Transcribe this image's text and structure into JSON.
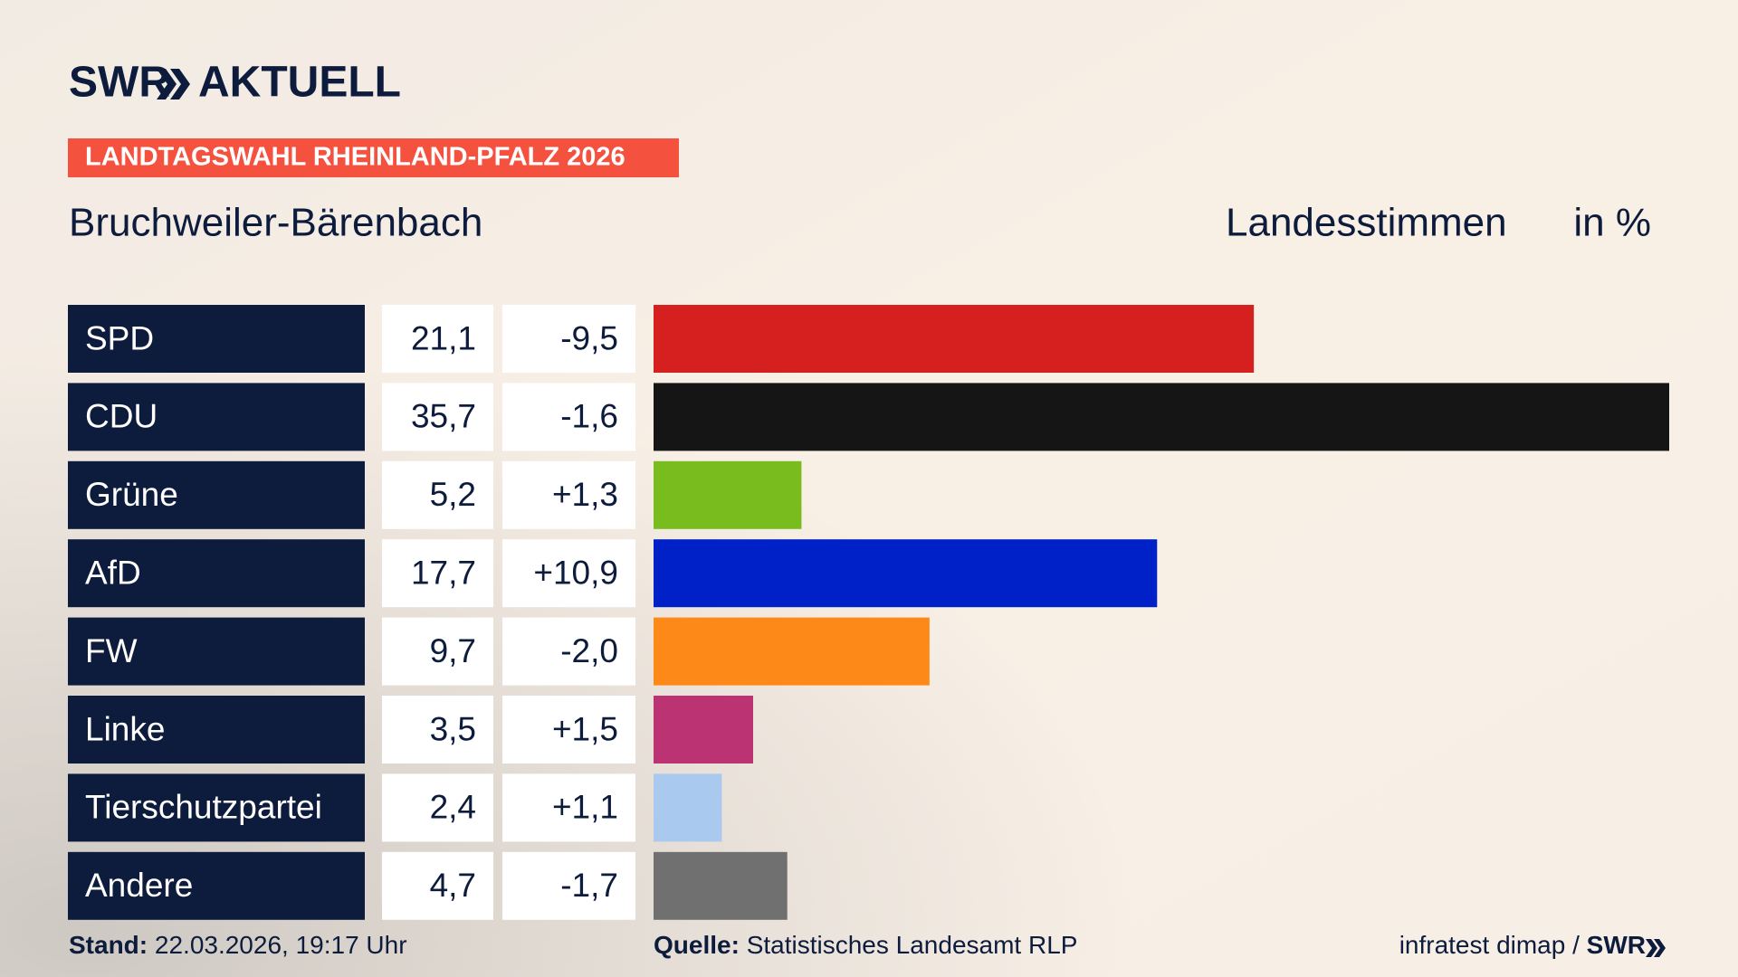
{
  "header": {
    "brand": "SWR",
    "section": "AKTUELL"
  },
  "chart_data": {
    "type": "bar",
    "tag": "LANDTAGSWAHL RHEINLAND-PFALZ 2026",
    "title": "Bruchweiler-Bärenbach",
    "measure": "Landesstimmen",
    "unit": "in %",
    "categories": [
      "SPD",
      "CDU",
      "Grüne",
      "AfD",
      "FW",
      "Linke",
      "Tierschutzpartei",
      "Andere"
    ],
    "values": [
      21.1,
      35.7,
      5.2,
      17.7,
      9.7,
      3.5,
      2.4,
      4.7
    ],
    "value_labels": [
      "21,1",
      "35,7",
      "5,2",
      "17,7",
      "9,7",
      "3,5",
      "2,4",
      "4,7"
    ],
    "changes": [
      -9.5,
      -1.6,
      1.3,
      10.9,
      -2.0,
      1.5,
      1.1,
      -1.7
    ],
    "change_labels": [
      "-9,5",
      "-1,6",
      "+1,3",
      "+10,9",
      "-2,0",
      "+1,5",
      "+1,1",
      "-1,7"
    ],
    "colors": [
      "#d61f1f",
      "#151515",
      "#79bc1e",
      "#0020c8",
      "#fd8a18",
      "#bc3373",
      "#aac9ef",
      "#707070"
    ]
  },
  "footer": {
    "stand_label": "Stand:",
    "stand": "22.03.2026, 19:17 Uhr",
    "source_label": "Quelle:",
    "source": "Statistisches Landesamt RLP",
    "credit": "infratest dimap /",
    "credit_brand": "SWR"
  }
}
